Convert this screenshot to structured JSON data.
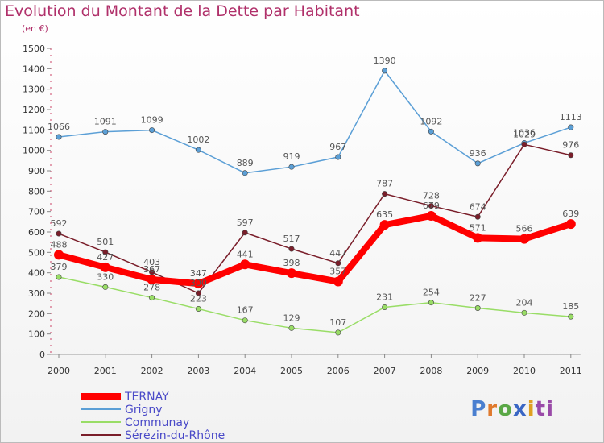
{
  "header": {
    "title": "Evolution du Montant de la Dette par Habitant",
    "subtitle": "(en €)"
  },
  "logo": {
    "text": "Proxiti"
  },
  "chart_data": {
    "type": "line",
    "title": "Evolution du Montant de la Dette par Habitant",
    "subtitle": "(en €)",
    "xlabel": "",
    "ylabel": "",
    "categories": [
      "2000",
      "2001",
      "2002",
      "2003",
      "2004",
      "2005",
      "2006",
      "2007",
      "2008",
      "2009",
      "2010",
      "2011"
    ],
    "ylim": [
      0,
      1500
    ],
    "yticks": [
      0,
      100,
      200,
      300,
      400,
      500,
      600,
      700,
      800,
      900,
      1000,
      1100,
      1200,
      1300,
      1400,
      1500
    ],
    "grid": false,
    "legend": "bottom-left",
    "series": [
      {
        "name": "TERNAY",
        "color": "#ff0000",
        "values": [
          488,
          427,
          367,
          347,
          441,
          398,
          357,
          635,
          679,
          571,
          566,
          639
        ]
      },
      {
        "name": "Grigny",
        "color": "#5b9fd6",
        "values": [
          1066,
          1091,
          1099,
          1002,
          889,
          919,
          967,
          1390,
          1092,
          936,
          1036,
          1113
        ]
      },
      {
        "name": "Communay",
        "color": "#99dd66",
        "values": [
          379,
          330,
          278,
          223,
          167,
          129,
          107,
          231,
          254,
          227,
          204,
          185
        ]
      },
      {
        "name": "Sérézin-du-Rhône",
        "color": "#7a1e2a",
        "values": [
          592,
          501,
          403,
          300,
          597,
          517,
          447,
          787,
          728,
          674,
          1029,
          976
        ]
      }
    ]
  }
}
